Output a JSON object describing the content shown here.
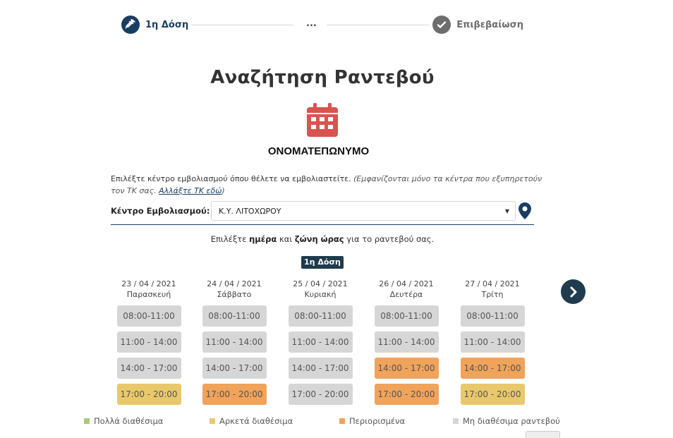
{
  "stepper": {
    "step1_label": "1η Δόση",
    "middle_label": "...",
    "step3_label": "Επιβεβαίωση"
  },
  "title": "Αναζήτηση Ραντεβού",
  "person_name": "ΟΝΟΜΑΤΕΠΩΝΥΜΟ",
  "instructions": {
    "main": "Επιλέξτε κέντρο εμβολιασμού όπου θέλετε να εμβολιαστείτε.",
    "note": "(Εμφανίζονται μόνο τα κέντρα που εξυπηρετούν τον ΤΚ σας.",
    "link": "Αλλάξτε ΤΚ εδώ",
    "note_end": ")"
  },
  "center": {
    "label": "Κέντρο Εμβολιασμού:",
    "selected": "Κ.Υ. ΛΙΤΟΧΩΡΟΥ"
  },
  "choose": {
    "prefix": "Επιλέξτε ",
    "day": "ημέρα",
    "and": " και ",
    "zone": "ζώνη ώρας",
    "suffix": " για το ραντεβού σας."
  },
  "dose_badge": "1η Δόση",
  "colors": {
    "many": "#a7cc78",
    "enough": "#e9c86c",
    "limited": "#f0a35a",
    "none": "#d6d6d6",
    "primary": "#1a3e63"
  },
  "days": [
    {
      "date": "23 / 04 / 2021",
      "name": "Παρασκευή",
      "slots": [
        {
          "time": "08:00-11:00",
          "status": "none"
        },
        {
          "time": "11:00 - 14:00",
          "status": "none"
        },
        {
          "time": "14:00 - 17:00",
          "status": "none"
        },
        {
          "time": "17:00 - 20:00",
          "status": "enough"
        }
      ]
    },
    {
      "date": "24 / 04 / 2021",
      "name": "Σάββατο",
      "slots": [
        {
          "time": "08:00-11:00",
          "status": "none"
        },
        {
          "time": "11:00 - 14:00",
          "status": "none"
        },
        {
          "time": "14:00 - 17:00",
          "status": "none"
        },
        {
          "time": "17:00 - 20:00",
          "status": "limited"
        }
      ]
    },
    {
      "date": "25 / 04 / 2021",
      "name": "Κυριακή",
      "slots": [
        {
          "time": "08:00-11:00",
          "status": "none"
        },
        {
          "time": "11:00 - 14:00",
          "status": "none"
        },
        {
          "time": "14:00 - 17:00",
          "status": "none"
        },
        {
          "time": "17:00 - 20:00",
          "status": "none"
        }
      ]
    },
    {
      "date": "26 / 04 / 2021",
      "name": "Δευτέρα",
      "slots": [
        {
          "time": "08:00-11:00",
          "status": "none"
        },
        {
          "time": "11:00 - 14:00",
          "status": "none"
        },
        {
          "time": "14:00 - 17:00",
          "status": "limited"
        },
        {
          "time": "17:00 - 20:00",
          "status": "limited"
        }
      ]
    },
    {
      "date": "27 / 04 / 2021",
      "name": "Τρίτη",
      "slots": [
        {
          "time": "08:00-11:00",
          "status": "none"
        },
        {
          "time": "11:00 - 14:00",
          "status": "none"
        },
        {
          "time": "14:00 - 17:00",
          "status": "limited"
        },
        {
          "time": "17:00 - 20:00",
          "status": "enough"
        }
      ]
    }
  ],
  "legend": [
    {
      "label": "Πολλά διαθέσιμα",
      "status": "many"
    },
    {
      "label": "Αρκετά διαθέσιμα",
      "status": "enough"
    },
    {
      "label": "Περιορισμένα",
      "status": "limited"
    },
    {
      "label": "Μη διαθέσιμα ραντεβού",
      "status": "none"
    }
  ],
  "icons": {
    "step1": "syringe-icon",
    "step3": "check-icon",
    "calendar": "calendar-icon",
    "map": "map-pin-icon",
    "next": "chevron-right-icon"
  }
}
